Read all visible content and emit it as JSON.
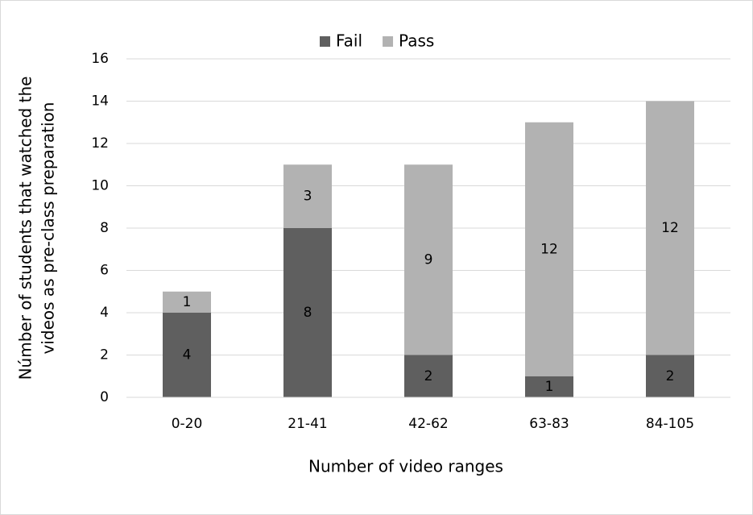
{
  "chart_data": {
    "type": "stacked_bar",
    "ylabel": [
      "Númber of students that watched the",
      "videos as pre-class preparation"
    ],
    "xlabel": "Number of video ranges",
    "categories": [
      "0-20",
      "21-41",
      "42-62",
      "63-83",
      "84-105"
    ],
    "series": [
      {
        "name": "Fail",
        "color": "#5f5f5f",
        "values": [
          4,
          8,
          2,
          1,
          2
        ]
      },
      {
        "name": "Pass",
        "color": "#b2b2b2",
        "values": [
          1,
          3,
          9,
          12,
          12
        ]
      }
    ],
    "ylim": [
      0,
      16
    ],
    "yticks": [
      0,
      2,
      4,
      6,
      8,
      10,
      12,
      14,
      16
    ],
    "grid": true,
    "legend": "top"
  }
}
